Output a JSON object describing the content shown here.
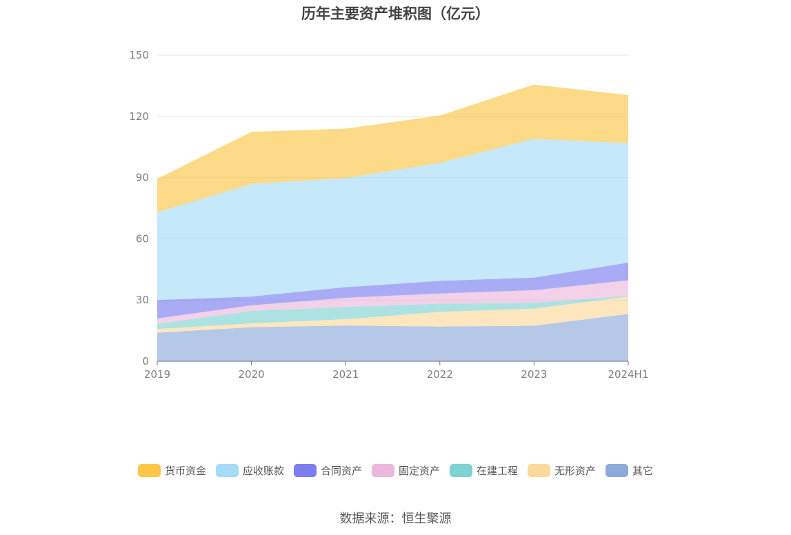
{
  "chart_data": {
    "type": "area",
    "title": "历年主要资产堆积图（亿元）",
    "x": [
      "2019",
      "2020",
      "2021",
      "2022",
      "2023",
      "2024H1"
    ],
    "y_ticks": [
      "0",
      "30",
      "60",
      "90",
      "120",
      "150"
    ],
    "ylim": [
      0,
      150
    ],
    "stacked": true,
    "grid": true,
    "legend_position": "bottom",
    "series": [
      {
        "name": "其它",
        "color": "#8eaadb",
        "values": [
          14.0,
          16.7,
          17.5,
          17.0,
          17.4,
          23.2
        ]
      },
      {
        "name": "无形资产",
        "color": "#fdd99b",
        "values": [
          1.8,
          1.9,
          3.1,
          7.2,
          8.4,
          8.5
        ]
      },
      {
        "name": "在建工程",
        "color": "#7fd3d3",
        "values": [
          2.5,
          6.1,
          6.0,
          4.0,
          2.8,
          0.4
        ]
      },
      {
        "name": "固定资产",
        "color": "#ebb8dd",
        "values": [
          2.7,
          2.7,
          4.5,
          5.0,
          6.2,
          7.6
        ]
      },
      {
        "name": "合同资产",
        "color": "#7b7ff0",
        "values": [
          9.0,
          4.3,
          5.2,
          6.2,
          6.2,
          8.6
        ]
      },
      {
        "name": "应收账款",
        "color": "#a6dcf7",
        "values": [
          43.0,
          55.2,
          53.5,
          57.8,
          68.0,
          58.5
        ]
      },
      {
        "name": "货币资金",
        "color": "#fcc647",
        "values": [
          16.4,
          25.5,
          24.2,
          23.2,
          26.6,
          23.6
        ]
      }
    ]
  },
  "legend_order": [
    "货币资金",
    "应收账款",
    "合同资产",
    "固定资产",
    "在建工程",
    "无形资产",
    "其它"
  ],
  "source": "数据来源：恒生聚源"
}
